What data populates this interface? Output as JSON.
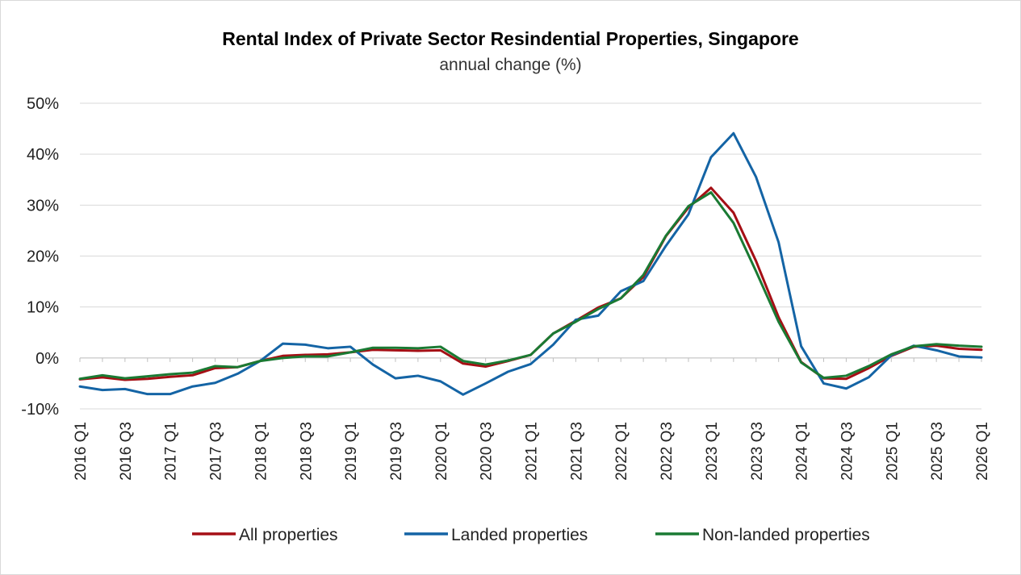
{
  "chart_data": {
    "type": "line",
    "title": "Rental Index of Private Sector Resindential Properties, Singapore",
    "subtitle": "annual change (%)",
    "ylim": [
      -10,
      50
    ],
    "yticks": [
      -10,
      0,
      10,
      20,
      30,
      40,
      50
    ],
    "ytick_labels": [
      "-10%",
      "0%",
      "10%",
      "20%",
      "30%",
      "40%",
      "50%"
    ],
    "x": [
      "2016 Q1",
      "2016 Q2",
      "2016 Q3",
      "2016 Q4",
      "2017 Q1",
      "2017 Q2",
      "2017 Q3",
      "2017 Q4",
      "2018 Q1",
      "2018 Q2",
      "2018 Q3",
      "2018 Q4",
      "2019 Q1",
      "2019 Q2",
      "2019 Q3",
      "2019 Q4",
      "2020 Q1",
      "2020 Q2",
      "2020 Q3",
      "2020 Q4",
      "2021 Q1",
      "2021 Q2",
      "2021 Q3",
      "2021 Q4",
      "2022 Q1",
      "2022 Q2",
      "2022 Q3",
      "2022 Q4",
      "2023 Q1",
      "2023 Q2",
      "2023 Q3",
      "2023 Q4",
      "2024 Q1",
      "2024 Q2",
      "2024 Q3",
      "2024 Q4",
      "2025 Q1",
      "2025 Q2",
      "2025 Q3",
      "2025 Q4",
      "2026 Q1"
    ],
    "xtick_labels": [
      "2016 Q1",
      "2016 Q3",
      "2017 Q1",
      "2017 Q3",
      "2018 Q1",
      "2018 Q3",
      "2019 Q1",
      "2019 Q3",
      "2020 Q1",
      "2020 Q3",
      "2021 Q1",
      "2021 Q3",
      "2022 Q1",
      "2022 Q3",
      "2023 Q1",
      "2023 Q3",
      "2024 Q1",
      "2024 Q3",
      "2025 Q1",
      "2025 Q3",
      "2026 Q1"
    ],
    "grid": true,
    "legend_position": "bottom",
    "series": [
      {
        "name": "All properties",
        "color": "#a50f15",
        "values": [
          -4.2,
          -3.8,
          -4.3,
          -4.1,
          -3.7,
          -3.4,
          -2.0,
          -1.8,
          -0.6,
          0.4,
          0.6,
          0.7,
          1.1,
          1.6,
          1.5,
          1.4,
          1.5,
          -1.1,
          -1.7,
          -0.6,
          0.6,
          4.8,
          7.3,
          9.9,
          11.7,
          15.9,
          23.9,
          29.5,
          33.4,
          28.5,
          19.0,
          8.0,
          -0.8,
          -4.0,
          -4.1,
          -2.0,
          0.4,
          2.2,
          2.4,
          1.8,
          1.6
        ]
      },
      {
        "name": "Landed properties",
        "color": "#1464a5",
        "values": [
          -5.6,
          -6.3,
          -6.1,
          -7.1,
          -7.1,
          -5.6,
          -4.9,
          -3.1,
          -0.6,
          2.8,
          2.6,
          1.9,
          2.2,
          -1.3,
          -4.0,
          -3.5,
          -4.6,
          -7.2,
          -5.0,
          -2.7,
          -1.2,
          2.6,
          7.5,
          8.3,
          13.1,
          15.1,
          22.0,
          28.2,
          39.4,
          44.1,
          35.5,
          22.7,
          2.3,
          -5.0,
          -6.0,
          -3.8,
          0.5,
          2.4,
          1.5,
          0.3,
          0.1
        ]
      },
      {
        "name": "Non-landed properties",
        "color": "#1a7a33",
        "values": [
          -4.1,
          -3.4,
          -4.0,
          -3.6,
          -3.2,
          -2.9,
          -1.6,
          -1.8,
          -0.6,
          0.0,
          0.3,
          0.3,
          1.1,
          2.0,
          2.0,
          1.9,
          2.2,
          -0.6,
          -1.3,
          -0.5,
          0.6,
          4.8,
          7.1,
          9.6,
          11.7,
          16.3,
          24.0,
          29.8,
          32.5,
          26.5,
          17.0,
          7.1,
          -0.9,
          -3.9,
          -3.5,
          -1.6,
          0.7,
          2.3,
          2.7,
          2.4,
          2.2
        ]
      }
    ]
  }
}
